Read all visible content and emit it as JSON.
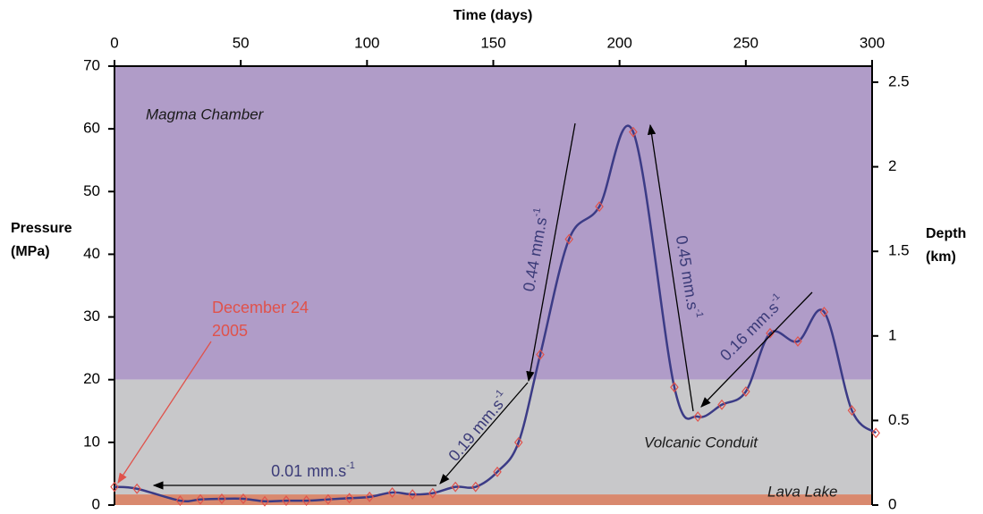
{
  "chart_data": {
    "type": "line",
    "x_label": "Time (days)",
    "y_label": [
      "Pressure",
      "(MPa)"
    ],
    "y2_label": [
      "Depth",
      "(km)"
    ],
    "xlim": [
      0,
      300
    ],
    "xticks": [
      0,
      50,
      100,
      150,
      200,
      250,
      300
    ],
    "ylim": [
      0,
      70
    ],
    "yticks": [
      0,
      10,
      20,
      30,
      40,
      50,
      60,
      70
    ],
    "y2lim": [
      0,
      2.595
    ],
    "y2ticks": [
      0,
      0.5,
      1,
      1.5,
      2,
      2.5
    ],
    "line_color": "#3b3b86",
    "marker_color": "#e0524b",
    "x": [
      0,
      8.9,
      26,
      34,
      42.5,
      51,
      59.5,
      68,
      76,
      84.6,
      93,
      101,
      110,
      118,
      126,
      135,
      143,
      151.6,
      160,
      168.6,
      180,
      192,
      205.4,
      221.7,
      231,
      240.5,
      250,
      259.6,
      270.6,
      281,
      292,
      301.5
    ],
    "values": [
      2.9,
      2.6,
      0.7,
      0.9,
      1.0,
      1.0,
      0.6,
      0.7,
      0.7,
      0.9,
      1.1,
      1.3,
      2.0,
      1.7,
      1.9,
      2.9,
      2.9,
      5.3,
      10.0,
      24.0,
      42.4,
      47.6,
      59.5,
      18.8,
      14.1,
      16.0,
      18.1,
      27.4,
      26.1,
      30.8,
      15.1,
      11.5
    ],
    "regions": [
      {
        "label": "Magma Chamber",
        "range": [
          20,
          70
        ],
        "color": "#b09cc8"
      },
      {
        "label": "Volcanic Conduit",
        "range": [
          1.7,
          20
        ],
        "color": "#c8c8ca"
      },
      {
        "label": "Lava Lake",
        "range": [
          0,
          1.7
        ],
        "color": "#d9896e"
      }
    ],
    "annotations": [
      {
        "text": "0.01 mm.s",
        "superscript": "-1"
      },
      {
        "text": "0.19 mm.s",
        "superscript": "-1"
      },
      {
        "text": "0.44 mm.s",
        "superscript": "-1"
      },
      {
        "text": "0.45 mm.s",
        "superscript": "-1"
      },
      {
        "text": "0.16 mm.s",
        "superscript": "-1"
      },
      {
        "text": [
          "December 24",
          "2005"
        ]
      }
    ]
  }
}
